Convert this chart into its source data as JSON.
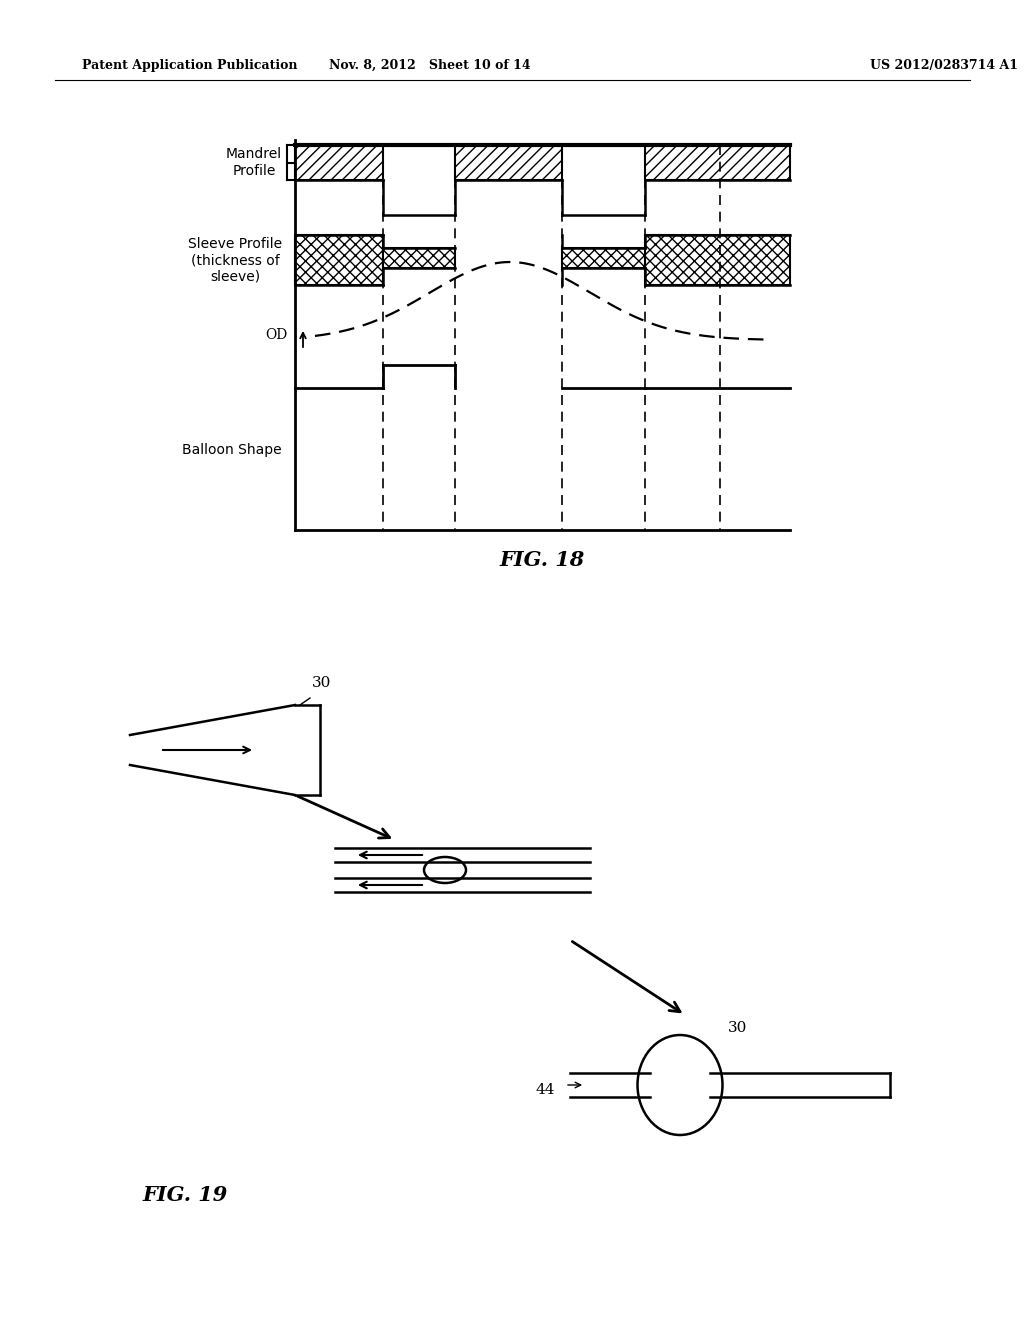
{
  "header_left": "Patent Application Publication",
  "header_mid": "Nov. 8, 2012   Sheet 10 of 14",
  "header_right": "US 2012/0283714 A1",
  "fig18_label": "FIG. 18",
  "fig19_label": "FIG. 19",
  "bg_color": "#ffffff",
  "text_color": "#000000"
}
